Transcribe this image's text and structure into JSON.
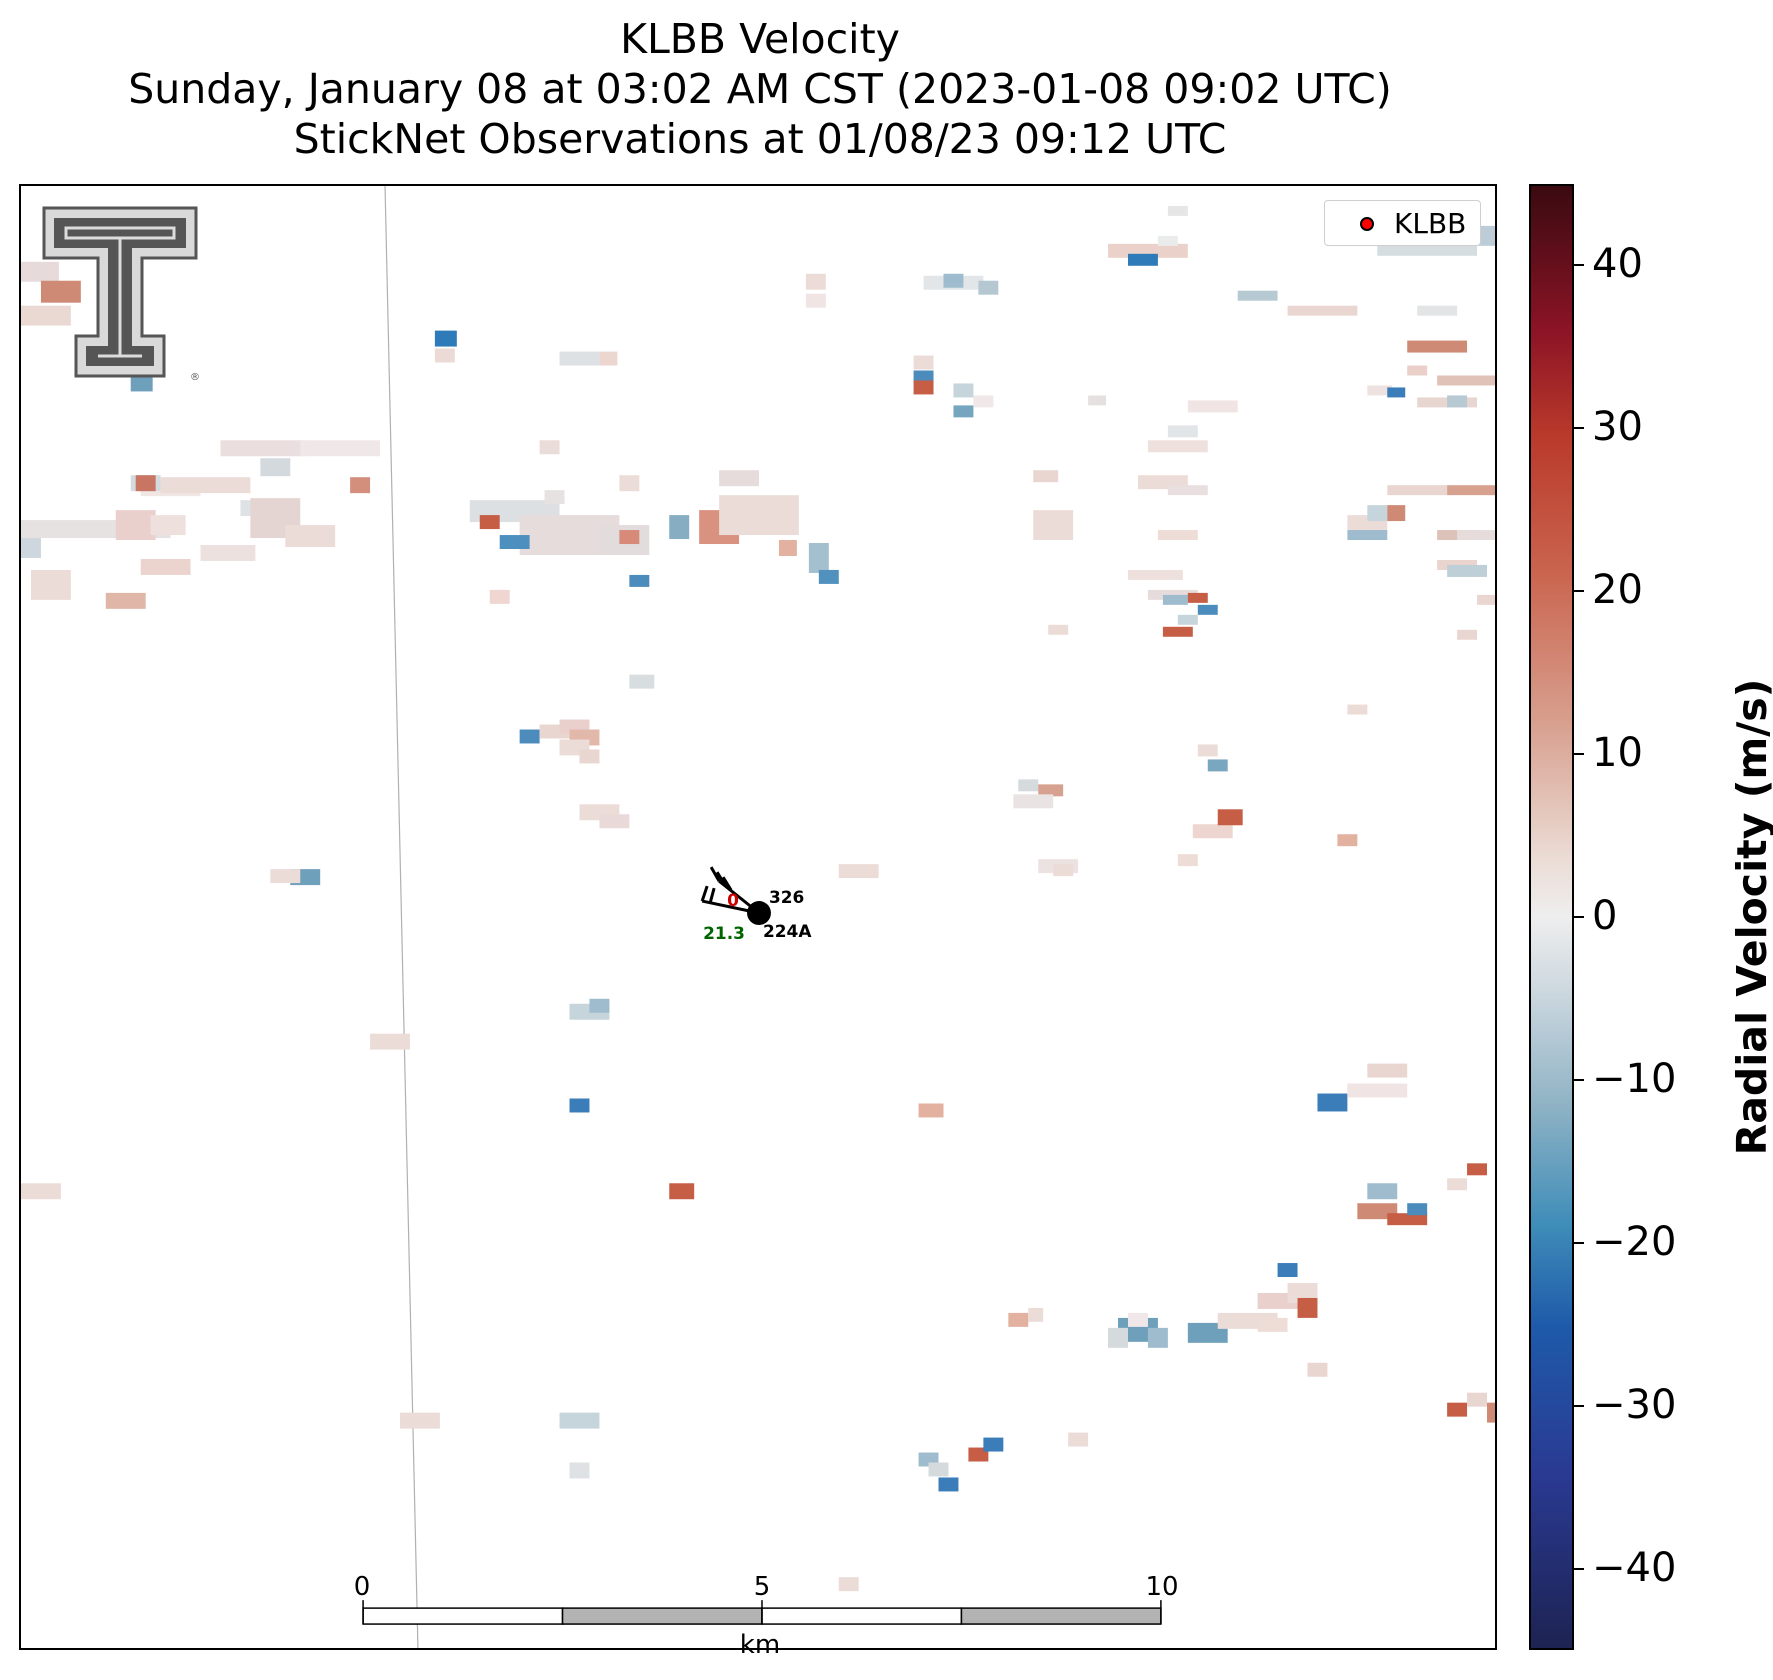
{
  "title": {
    "line1": "KLBB Velocity",
    "line2": "Sunday, January 08 at 03:02 AM CST (2023-01-08 09:02 UTC)",
    "line3": "StickNet Observations at 01/08/23 09:12 UTC"
  },
  "legend": {
    "label": "KLBB",
    "marker_color": "#ff0000"
  },
  "colorbar": {
    "label": "Radial Velocity (m/s)",
    "range": [
      -45,
      45
    ],
    "ticks": [
      40,
      30,
      20,
      10,
      0,
      -10,
      -20,
      -30,
      -40
    ],
    "tick_labels": [
      "40",
      "30",
      "20",
      "10",
      "0",
      "−10",
      "−20",
      "−30",
      "−40"
    ],
    "colors": {
      "max": "#3a0a10",
      "positive": "#c9624c",
      "zero": "#eeeeee",
      "negative": "#3f8db9",
      "min": "#1d2352"
    }
  },
  "scale_bar": {
    "unit": "km",
    "tick_labels": [
      "0",
      "5",
      "10"
    ]
  },
  "stations": [
    {
      "id": "326",
      "value": "0",
      "value_color": "#cc0000"
    },
    {
      "id": "224A",
      "value": "21.3",
      "value_color": "#006400"
    }
  ],
  "logo": {
    "name": "texas-tech-double-t-logo"
  },
  "chart_data": {
    "type": "heatmap",
    "title": "KLBB Velocity",
    "subtitle": [
      "Sunday, January 08 at 03:02 AM CST (2023-01-08 09:02 UTC)",
      "StickNet Observations at 01/08/23 09:12 UTC"
    ],
    "variable": "Radial Velocity (m/s)",
    "vmin": -45,
    "vmax": 45,
    "colorbar_ticks": [
      -40,
      -30,
      -20,
      -10,
      0,
      10,
      20,
      30,
      40
    ],
    "legend": [
      "KLBB"
    ],
    "legend_position": "top-right",
    "scale_km": [
      0,
      5,
      10
    ],
    "stations": [
      {
        "id": "326",
        "value": 0
      },
      {
        "id": "224A",
        "value": 21.3
      }
    ],
    "grid": false
  }
}
